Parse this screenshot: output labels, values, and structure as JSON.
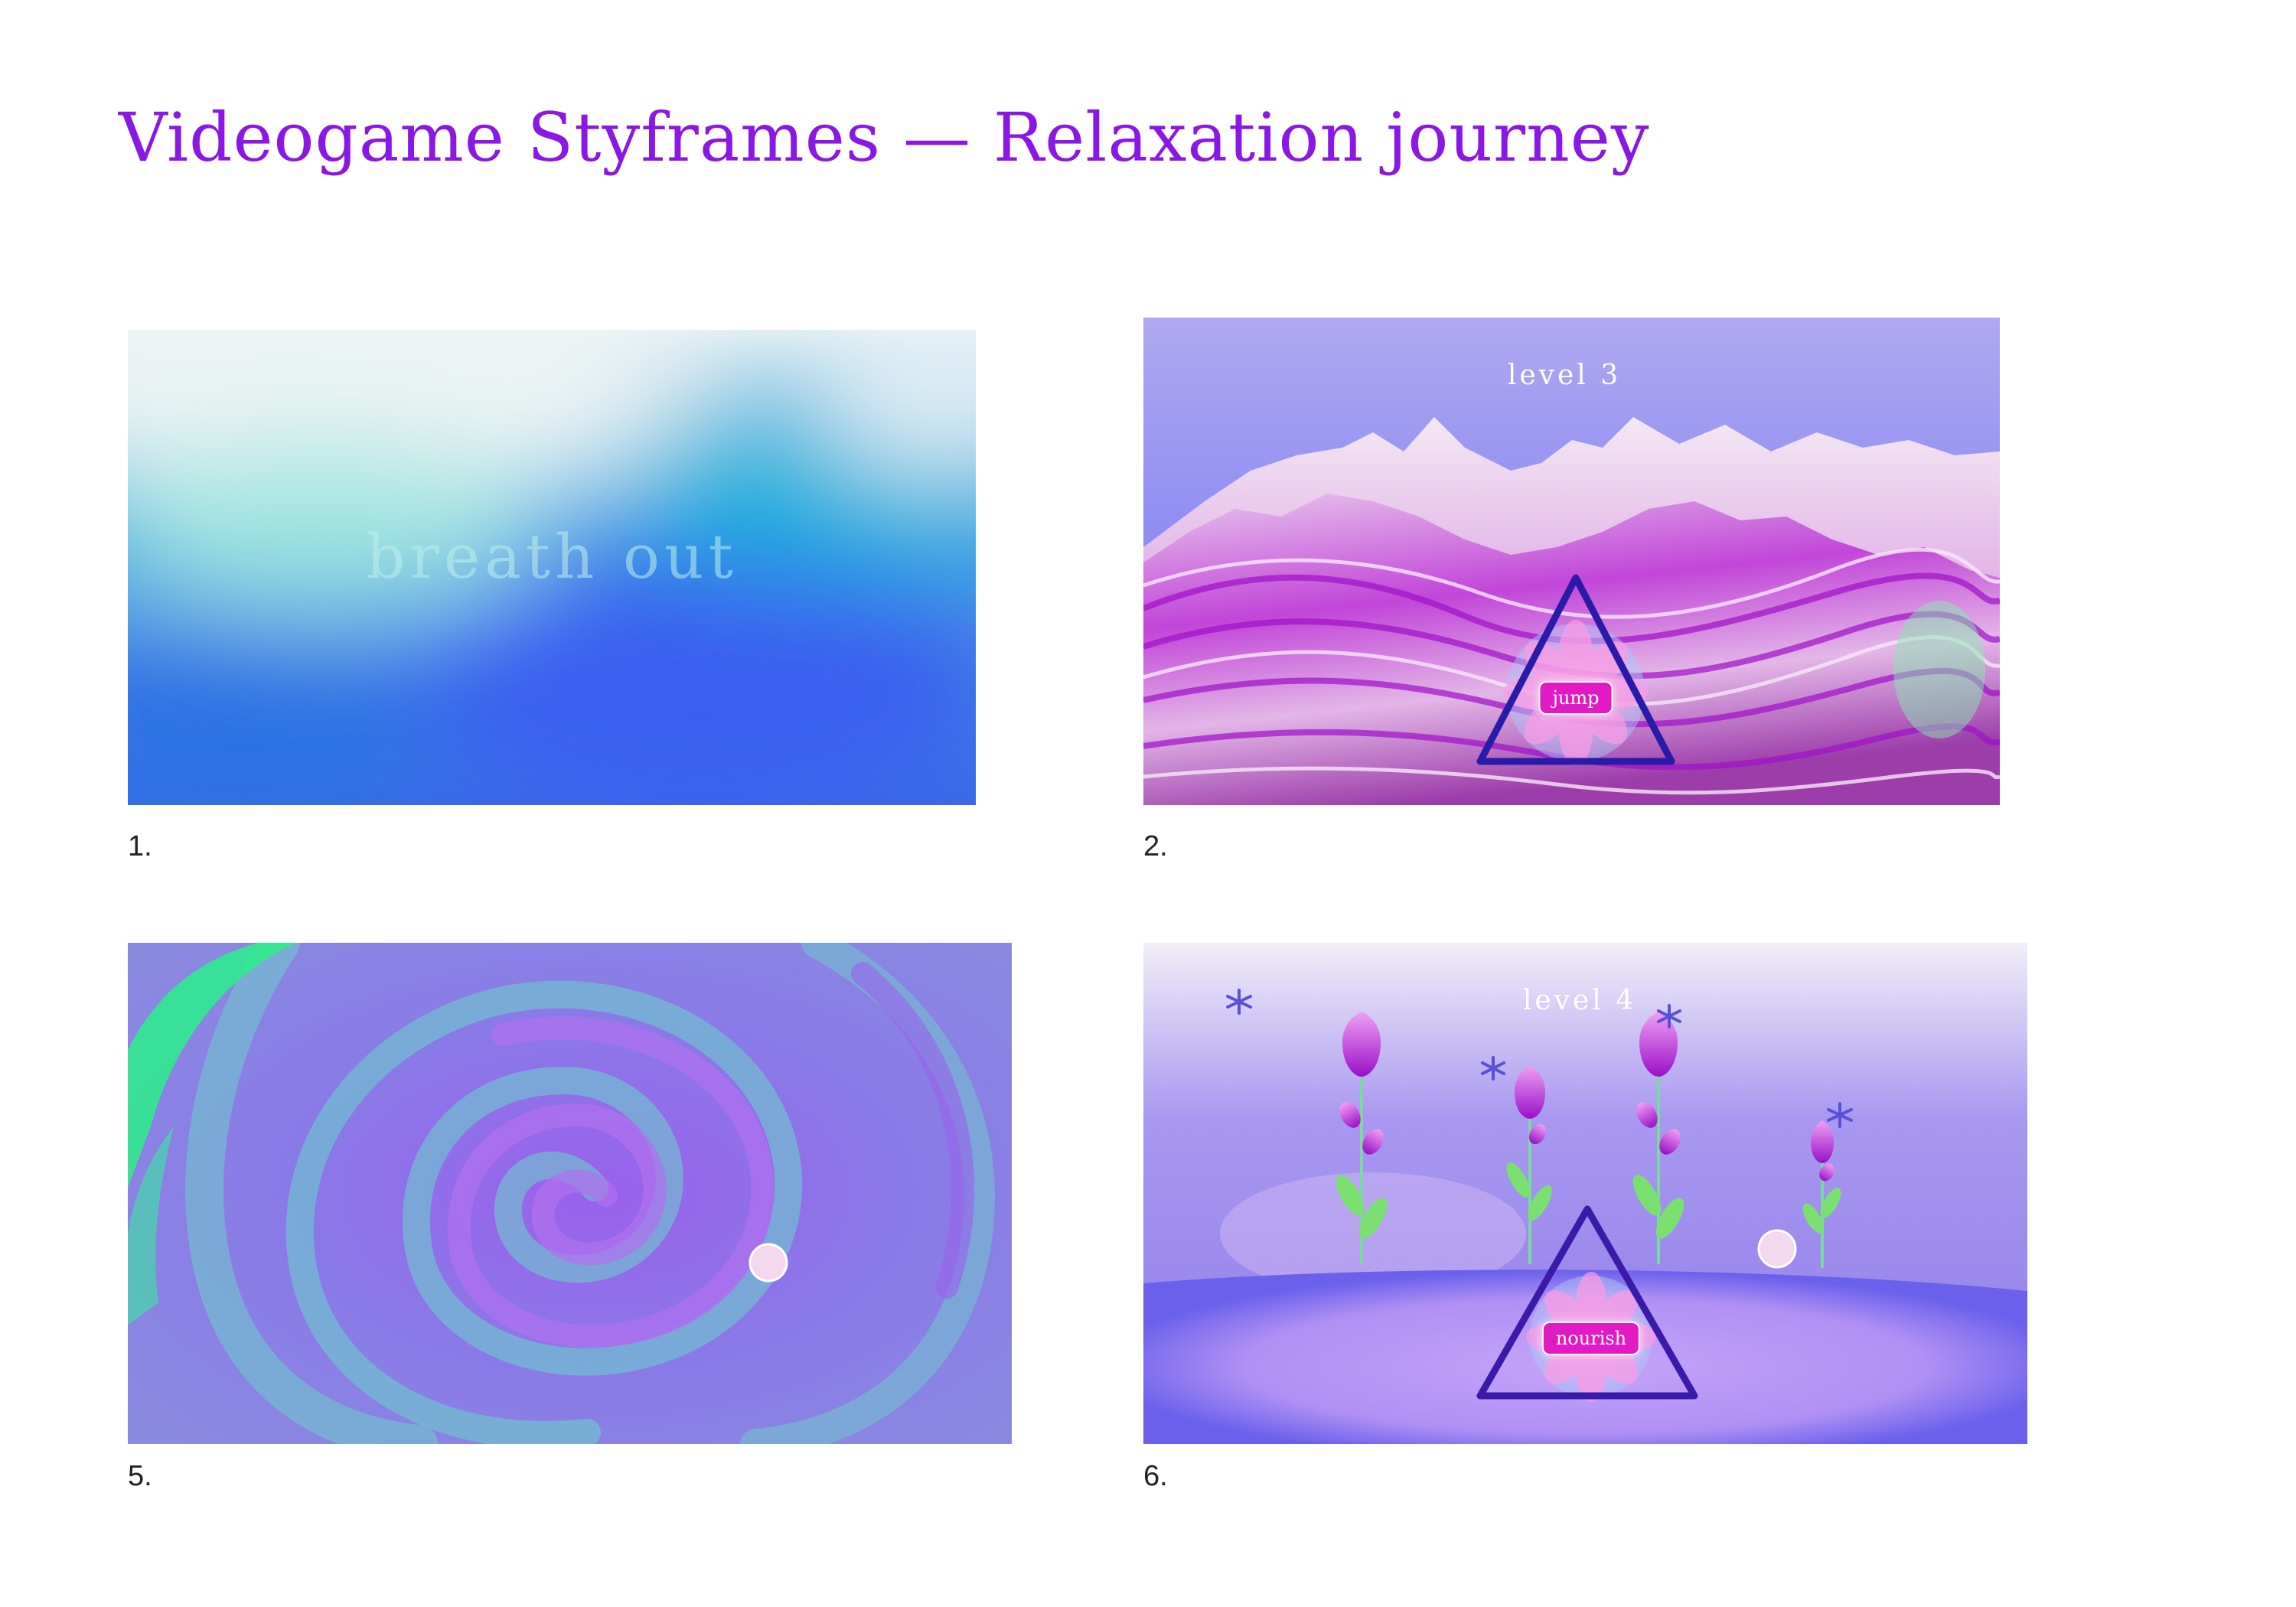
{
  "title": "Videogame Styframes — Relaxation journey",
  "frames": [
    {
      "caption": "1.",
      "overlay": "breath out",
      "icons": [
        "gradient-background"
      ]
    },
    {
      "caption": "2.",
      "level": "level 3",
      "button": "jump",
      "icons": [
        "mountain-range",
        "triangle-icon",
        "mandala-icon"
      ]
    },
    {
      "caption": "5.",
      "icons": [
        "swirl-background",
        "orb-icon"
      ]
    },
    {
      "caption": "6.",
      "level": "level 4",
      "button": "nourish",
      "icons": [
        "tulip-icon",
        "sparkle-icon",
        "triangle-icon",
        "mandala-icon",
        "orb-icon"
      ]
    }
  ],
  "colors": {
    "title": "#8a18e4",
    "button": "#e21ac4",
    "triangle": "#2a1aa8"
  }
}
